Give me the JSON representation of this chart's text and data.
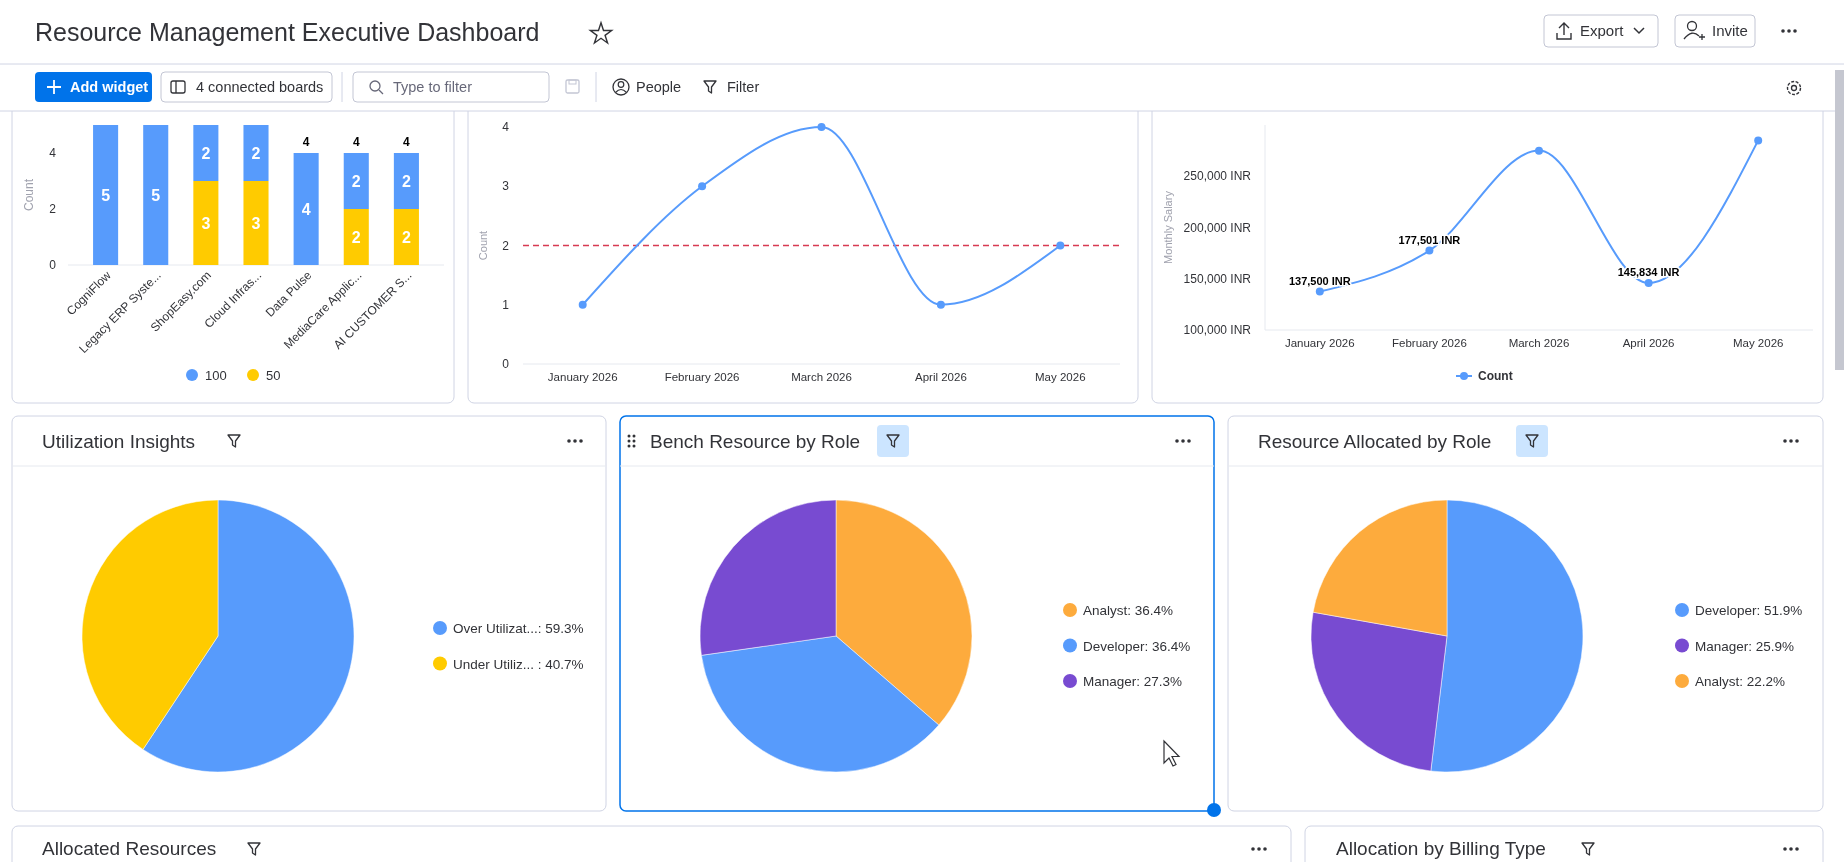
{
  "chart_data": [
    {
      "type": "other",
      "title": "Resource Management Executive Dashboard",
      "annotations": [
        "Export",
        "Invite",
        "Add widget",
        "4 connected boards",
        "Type to filter",
        "People",
        "Filter"
      ]
    },
    {
      "type": "bar",
      "stacked": true,
      "categories": [
        "CogniFlow",
        "Legacy ERP Syste...",
        "ShopEasy.com",
        "Cloud Infras...",
        "Data Pulse",
        "MediaCare Applic...",
        "AI CUSTOMER S..."
      ],
      "series": [
        {
          "name": "50",
          "color": "#ffcb00",
          "values": [
            null,
            null,
            3,
            3,
            null,
            2,
            2
          ]
        },
        {
          "name": "100",
          "color": "#579bfc",
          "values": [
            5,
            5,
            2,
            2,
            4,
            2,
            2
          ]
        }
      ],
      "totals": [
        null,
        null,
        null,
        null,
        "4",
        "4",
        "4"
      ],
      "data_labels": true,
      "ylabel": "Count",
      "ylim": [
        0,
        5
      ],
      "yticks": [
        0,
        2,
        4
      ],
      "legend": "bottom"
    },
    {
      "type": "line",
      "categories": [
        "January 2026",
        "February 2026",
        "March 2026",
        "April 2026",
        "May 2026"
      ],
      "values": [
        1,
        3,
        4,
        1,
        2
      ],
      "color": "#579bfc",
      "ylabel": "Count",
      "ylim": [
        0,
        4
      ],
      "yticks": [
        0,
        1,
        2,
        3,
        4
      ],
      "marker": "circle",
      "ref_lines": [
        {
          "axis": "y",
          "value": 2,
          "color": "#d83a52",
          "line_style": "dashed"
        }
      ]
    },
    {
      "type": "line",
      "categories": [
        "January 2026",
        "February 2026",
        "March 2026",
        "April 2026",
        "May 2026"
      ],
      "series": [
        {
          "name": "Count",
          "color": "#579bfc",
          "values": [
            137500,
            177501,
            275000,
            145834,
            285000
          ],
          "value_labels": [
            "137,500 INR",
            "177,501 INR",
            null,
            "145,834 INR",
            null
          ]
        }
      ],
      "ylabel": "Monthly Salary",
      "ylim": [
        100000,
        300000
      ],
      "yticks": [
        {
          "value": 100000,
          "label": "100,000 INR"
        },
        {
          "value": 150000,
          "label": "150,000 INR"
        },
        {
          "value": 200000,
          "label": "200,000 INR"
        },
        {
          "value": 250000,
          "label": "250,000 INR"
        }
      ],
      "marker": "circle",
      "legend": "bottom"
    },
    {
      "type": "pie",
      "title": "Utilization Insights",
      "categories": [
        "Over Utilizat...",
        "Under Utiliz... "
      ],
      "values": [
        59.3,
        40.7
      ],
      "value_labels": [
        "59.3%",
        "40.7%"
      ],
      "colors": [
        "#579bfc",
        "#ffcb00"
      ],
      "legend": "right"
    },
    {
      "type": "pie",
      "title": "Bench Resource by Role",
      "categories": [
        "Analyst",
        "Developer",
        "Manager"
      ],
      "values": [
        36.4,
        36.4,
        27.3
      ],
      "value_labels": [
        "36.4%",
        "36.4%",
        "27.3%"
      ],
      "colors": [
        "#fdab3d",
        "#579bfc",
        "#784bd1"
      ],
      "legend": "right"
    },
    {
      "type": "pie",
      "title": "Resource Allocated by Role",
      "categories": [
        "Developer",
        "Manager",
        "Analyst"
      ],
      "values": [
        51.9,
        25.9,
        22.2
      ],
      "value_labels": [
        "51.9%",
        "25.9%",
        "22.2%"
      ],
      "colors": [
        "#579bfc",
        "#784bd1",
        "#fdab3d"
      ],
      "legend": "right"
    },
    {
      "type": "other",
      "title": "Allocated Resources"
    },
    {
      "type": "other",
      "title": "Allocation by Billing Type"
    }
  ]
}
